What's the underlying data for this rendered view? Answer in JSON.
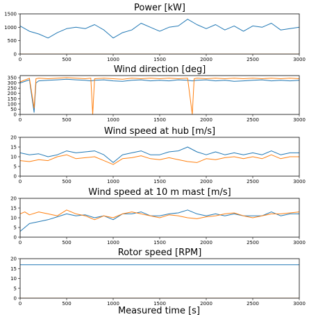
{
  "figure": {
    "xlabel": "Measured time [s]"
  },
  "colors": {
    "series1": "#1f77b4",
    "series2": "#ff7f0e"
  },
  "chart_data": [
    {
      "type": "line",
      "title": "Power [kW]",
      "xlim": [
        0,
        3000
      ],
      "ylim": [
        0,
        1500
      ],
      "xticks": [
        "0",
        "500",
        "1000",
        "1500",
        "2000",
        "2500",
        "3000"
      ],
      "yticks": [
        "0",
        "500",
        "1000",
        "1500"
      ],
      "x": [
        0,
        100,
        200,
        300,
        400,
        500,
        600,
        700,
        800,
        900,
        1000,
        1100,
        1200,
        1300,
        1400,
        1500,
        1600,
        1700,
        1800,
        1900,
        2000,
        2100,
        2200,
        2300,
        2400,
        2500,
        2600,
        2700,
        2800,
        2900,
        3000
      ],
      "series": [
        {
          "color": "series1",
          "values": [
            1050,
            850,
            750,
            600,
            800,
            950,
            1000,
            950,
            1100,
            900,
            600,
            800,
            900,
            1150,
            1000,
            850,
            1000,
            1050,
            1300,
            1100,
            950,
            1100,
            900,
            1050,
            850,
            1050,
            1000,
            1150,
            900,
            950,
            1000
          ]
        },
        {
          "color": "series2",
          "values": [
            0,
            0,
            0,
            0,
            0,
            0,
            0,
            0,
            0,
            0,
            0,
            0,
            0,
            0,
            0,
            0,
            0,
            0,
            0,
            0,
            0,
            0,
            0,
            0,
            0,
            0,
            0,
            0,
            0,
            0,
            0
          ]
        }
      ]
    },
    {
      "type": "line",
      "title": "Wind direction [deg]",
      "xlim": [
        0,
        3000
      ],
      "ylim": [
        0,
        370
      ],
      "xticks": [
        "0",
        "500",
        "1000",
        "1500",
        "2000",
        "2500",
        "3000"
      ],
      "yticks": [
        "0",
        "50",
        "100",
        "150",
        "200",
        "250",
        "300",
        "350"
      ],
      "x": [
        0,
        100,
        150,
        170,
        200,
        300,
        400,
        500,
        600,
        700,
        760,
        780,
        800,
        900,
        1000,
        1100,
        1200,
        1300,
        1400,
        1500,
        1600,
        1700,
        1800,
        1850,
        1870,
        1900,
        2000,
        2100,
        2200,
        2300,
        2400,
        2500,
        2600,
        2700,
        2800,
        2900,
        3000
      ],
      "series": [
        {
          "color": "series1",
          "values": [
            300,
            330,
            20,
            300,
            320,
            325,
            330,
            335,
            330,
            325,
            320,
            322,
            325,
            330,
            320,
            315,
            325,
            330,
            320,
            325,
            320,
            330,
            325,
            320,
            322,
            325,
            330,
            320,
            325,
            315,
            320,
            325,
            330,
            320,
            325,
            320,
            325
          ]
        },
        {
          "color": "series2",
          "values": [
            310,
            345,
            60,
            340,
            345,
            340,
            345,
            350,
            345,
            340,
            345,
            0,
            340,
            345,
            340,
            335,
            345,
            340,
            345,
            340,
            345,
            340,
            345,
            0,
            340,
            345,
            340,
            345,
            340,
            345,
            340,
            345,
            340,
            345,
            340,
            345,
            340
          ]
        }
      ]
    },
    {
      "type": "line",
      "title": "Wind speed at hub [m/s]",
      "xlim": [
        0,
        3000
      ],
      "ylim": [
        0,
        20
      ],
      "xticks": [
        "0",
        "500",
        "1000",
        "1500",
        "2000",
        "2500",
        "3000"
      ],
      "yticks": [
        "0",
        "5",
        "10",
        "15",
        "20"
      ],
      "x": [
        0,
        100,
        200,
        300,
        400,
        500,
        600,
        700,
        800,
        900,
        1000,
        1100,
        1200,
        1300,
        1400,
        1500,
        1600,
        1700,
        1800,
        1900,
        2000,
        2100,
        2200,
        2300,
        2400,
        2500,
        2600,
        2700,
        2800,
        2900,
        3000
      ],
      "series": [
        {
          "color": "series1",
          "values": [
            12,
            11,
            11.5,
            10,
            11,
            13,
            12,
            12.5,
            13,
            11,
            7,
            11,
            12,
            13,
            11,
            11,
            12.5,
            13,
            15,
            12.5,
            11,
            12.5,
            11,
            12,
            11,
            12,
            11,
            13,
            11,
            12,
            12
          ]
        },
        {
          "color": "series2",
          "values": [
            8,
            7.5,
            8.5,
            8,
            10,
            11,
            9,
            9.5,
            10,
            8,
            6,
            9,
            9.5,
            10.5,
            9,
            8.5,
            9.5,
            8.5,
            7.5,
            7,
            9,
            8.5,
            9.5,
            10,
            9,
            10,
            9,
            11,
            9,
            10,
            10
          ]
        }
      ]
    },
    {
      "type": "line",
      "title": "Wind speed at 10 m mast [m/s]",
      "xlim": [
        0,
        3000
      ],
      "ylim": [
        0,
        20
      ],
      "xticks": [
        "0",
        "500",
        "1000",
        "1500",
        "2000",
        "2500",
        "3000"
      ],
      "yticks": [
        "0",
        "5",
        "10",
        "15",
        "20"
      ],
      "x": [
        0,
        50,
        100,
        200,
        300,
        400,
        500,
        600,
        700,
        800,
        900,
        1000,
        1100,
        1200,
        1300,
        1400,
        1500,
        1600,
        1700,
        1800,
        1900,
        2000,
        2100,
        2200,
        2300,
        2400,
        2500,
        2600,
        2700,
        2800,
        2900,
        3000
      ],
      "series": [
        {
          "color": "series1",
          "values": [
            3,
            5,
            7,
            8,
            9,
            10.5,
            12,
            11,
            11.5,
            10,
            11,
            9,
            12,
            12,
            13,
            11,
            11,
            12,
            12.5,
            14,
            12,
            11,
            12,
            11,
            12,
            11,
            11,
            11,
            13,
            11,
            12,
            12
          ]
        },
        {
          "color": "series2",
          "values": [
            12,
            13,
            11.5,
            13,
            12,
            11,
            14,
            12,
            11,
            9,
            11,
            10,
            12,
            13,
            12,
            11,
            10,
            11.5,
            11,
            10,
            9.5,
            10.5,
            11,
            12,
            12.5,
            11,
            10,
            11,
            12,
            12,
            12.5,
            13
          ]
        }
      ]
    },
    {
      "type": "line",
      "title": "Rotor speed [RPM]",
      "xlim": [
        0,
        3000
      ],
      "ylim": [
        0,
        20
      ],
      "xticks": [
        "0",
        "500",
        "1000",
        "1500",
        "2000",
        "2500",
        "3000"
      ],
      "yticks": [
        "0",
        "5",
        "10",
        "15",
        "20"
      ],
      "x": [
        0,
        500,
        1000,
        1500,
        2000,
        2500,
        3000
      ],
      "series": [
        {
          "color": "series1",
          "values": [
            16.9,
            16.9,
            16.9,
            16.9,
            16.9,
            16.9,
            16.9
          ]
        },
        {
          "color": "series2",
          "values": [
            0,
            0,
            0,
            0,
            0,
            0,
            0
          ]
        }
      ]
    }
  ]
}
